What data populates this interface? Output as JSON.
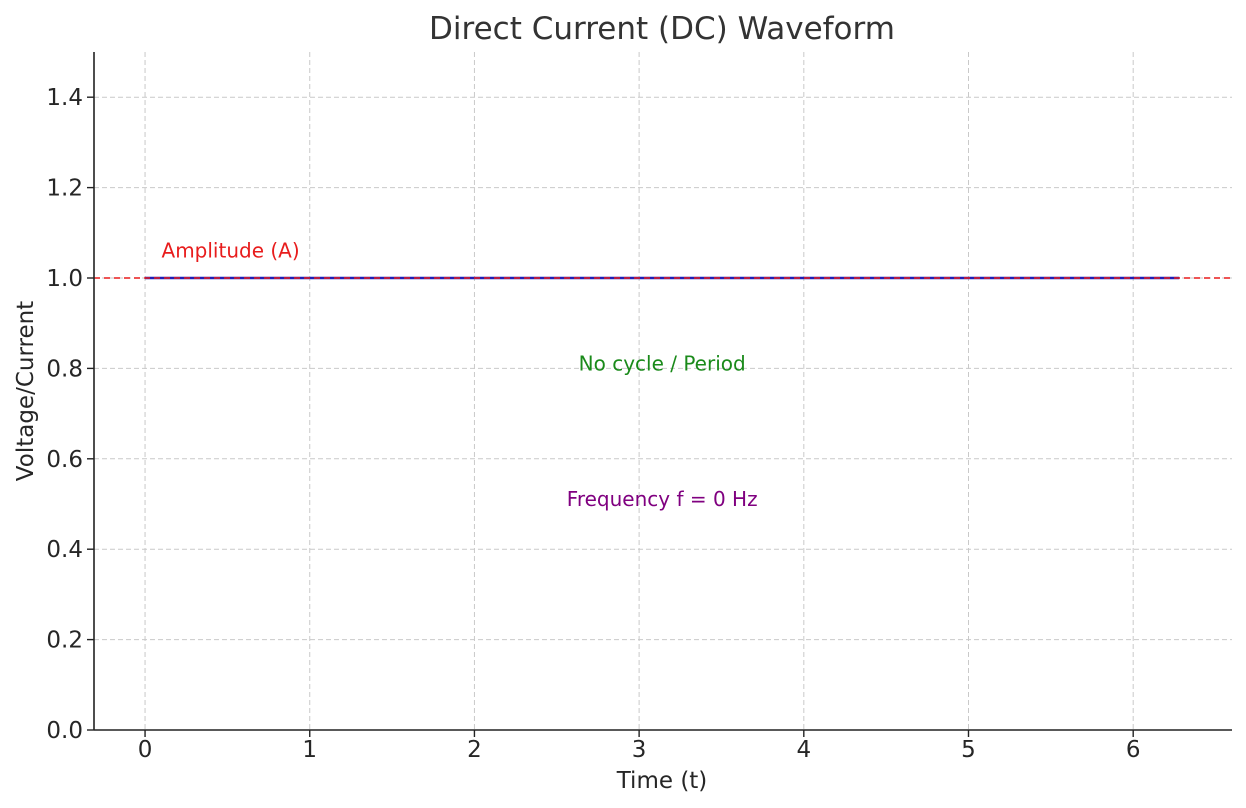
{
  "chart_data": {
    "type": "line",
    "title": "Direct Current (DC) Waveform",
    "xlabel": "Time (t)",
    "ylabel": "Voltage/Current",
    "xlim": [
      -0.31,
      6.6
    ],
    "ylim": [
      0,
      1.5
    ],
    "xticks": [
      0,
      1,
      2,
      3,
      4,
      5,
      6
    ],
    "yticks": [
      0.0,
      0.2,
      0.4,
      0.6,
      0.8,
      1.0,
      1.2,
      1.4
    ],
    "grid": true,
    "series": [
      {
        "color": "#1f1fb4",
        "x": [
          0,
          6.28
        ],
        "y": [
          1.0,
          1.0
        ]
      }
    ],
    "reference_line": {
      "y": 1.0,
      "color": "#e81c1c",
      "style": "dashed"
    },
    "annotations": [
      {
        "text": "Amplitude (A)",
        "x": 0.1,
        "y": 1.05,
        "color": "#e81c1c",
        "anchor": "start"
      },
      {
        "text": "No cycle / Period",
        "x": 3.14,
        "y": 0.8,
        "color": "#1a8a1a",
        "anchor": "middle"
      },
      {
        "text": "Frequency f = 0 Hz",
        "x": 3.14,
        "y": 0.5,
        "color": "#800080",
        "anchor": "middle"
      }
    ]
  }
}
